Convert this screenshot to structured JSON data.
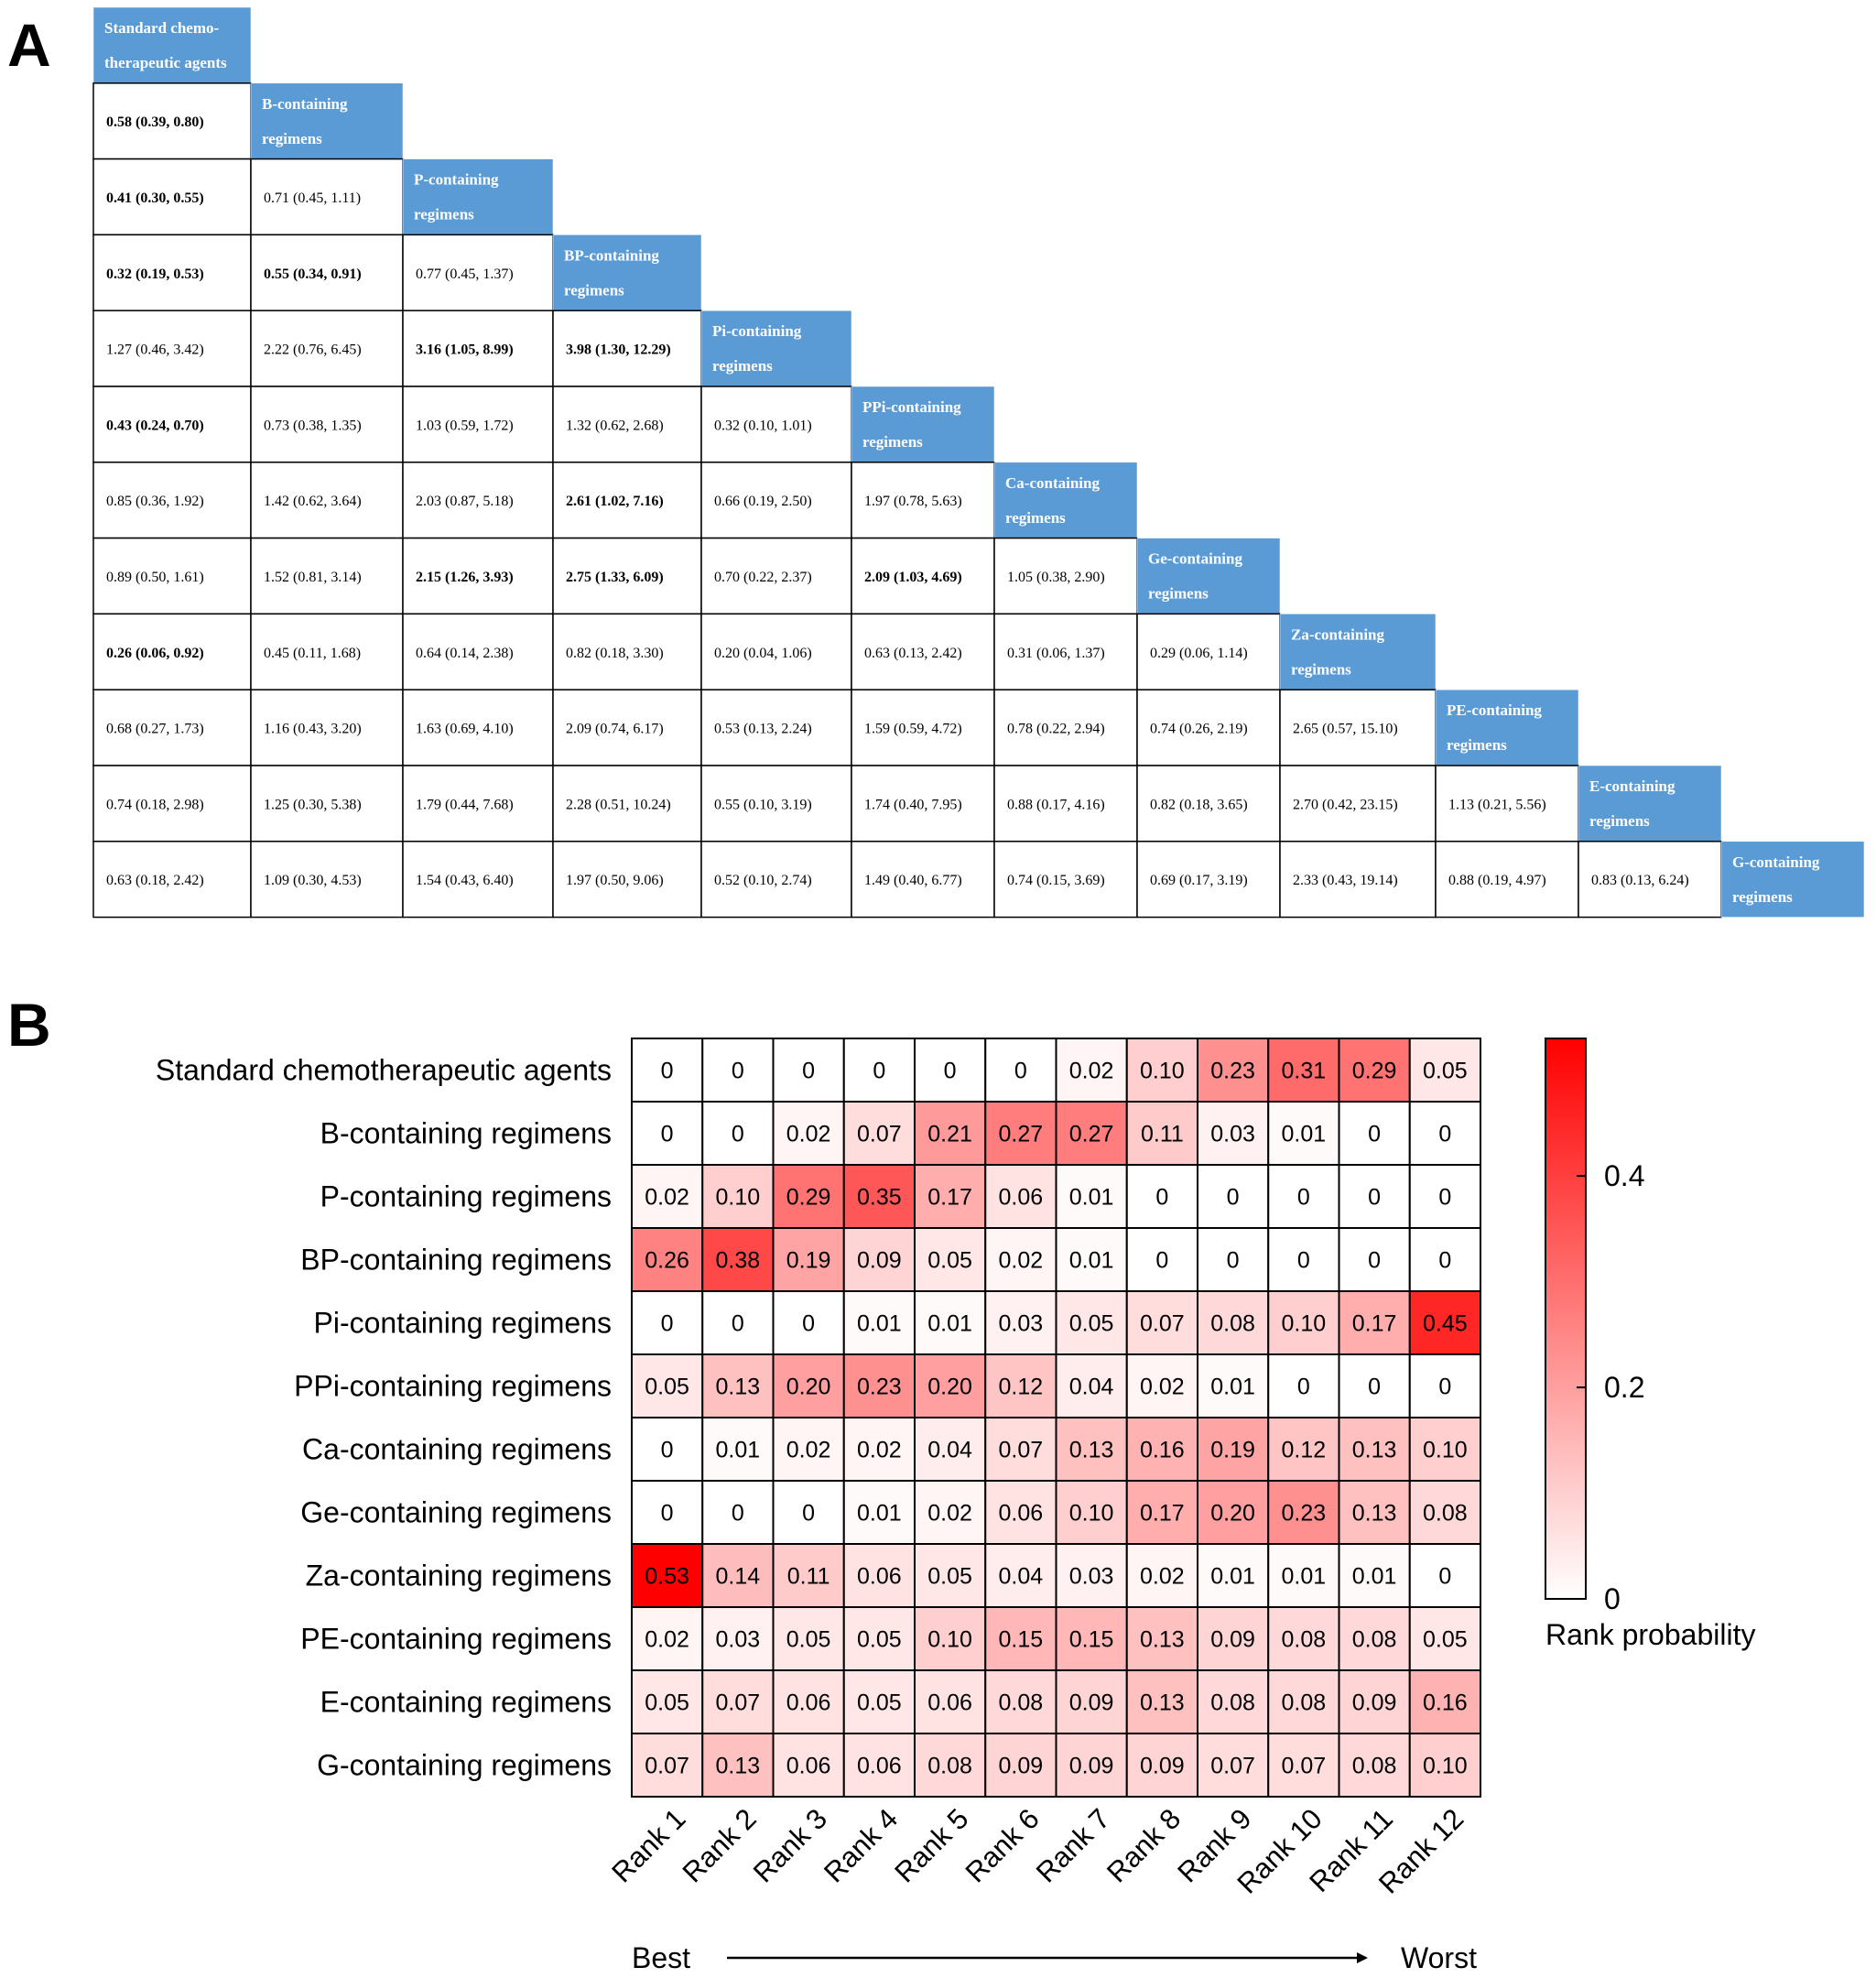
{
  "panel_labels": {
    "a": "A",
    "b": "B"
  },
  "league_table": {
    "header_color": "#5B9BD5",
    "treatments": [
      [
        "Standard chemo-",
        "therapeutic agents"
      ],
      [
        "B-containing",
        "regimens"
      ],
      [
        "P-containing",
        "regimens"
      ],
      [
        "BP-containing",
        "regimens"
      ],
      [
        "Pi-containing",
        "regimens"
      ],
      [
        "PPi-containing",
        "regimens"
      ],
      [
        "Ca-containing",
        "regimens"
      ],
      [
        "Ge-containing",
        "regimens"
      ],
      [
        "Za-containing",
        "regimens"
      ],
      [
        "PE-containing",
        "regimens"
      ],
      [
        "E-containing",
        "regimens"
      ],
      [
        "G-containing",
        "regimens"
      ]
    ],
    "rows": [
      [],
      [
        {
          "text": "0.58 (0.39, 0.80)",
          "bold": true
        }
      ],
      [
        {
          "text": "0.41 (0.30, 0.55)",
          "bold": true
        },
        {
          "text": "0.71 (0.45, 1.11)",
          "bold": false
        }
      ],
      [
        {
          "text": "0.32 (0.19, 0.53)",
          "bold": true
        },
        {
          "text": "0.55 (0.34, 0.91)",
          "bold": true
        },
        {
          "text": "0.77 (0.45, 1.37)",
          "bold": false
        }
      ],
      [
        {
          "text": "1.27 (0.46, 3.42)",
          "bold": false
        },
        {
          "text": "2.22 (0.76, 6.45)",
          "bold": false
        },
        {
          "text": "3.16 (1.05, 8.99)",
          "bold": true
        },
        {
          "text": "3.98 (1.30, 12.29)",
          "bold": true
        }
      ],
      [
        {
          "text": "0.43 (0.24, 0.70)",
          "bold": true
        },
        {
          "text": "0.73 (0.38, 1.35)",
          "bold": false
        },
        {
          "text": "1.03 (0.59, 1.72)",
          "bold": false
        },
        {
          "text": "1.32 (0.62, 2.68)",
          "bold": false
        },
        {
          "text": "0.32 (0.10, 1.01)",
          "bold": false
        }
      ],
      [
        {
          "text": "0.85 (0.36, 1.92)",
          "bold": false
        },
        {
          "text": "1.42 (0.62, 3.64)",
          "bold": false
        },
        {
          "text": "2.03 (0.87, 5.18)",
          "bold": false
        },
        {
          "text": "2.61 (1.02, 7.16)",
          "bold": true
        },
        {
          "text": "0.66 (0.19, 2.50)",
          "bold": false
        },
        {
          "text": "1.97 (0.78, 5.63)",
          "bold": false
        }
      ],
      [
        {
          "text": "0.89 (0.50, 1.61)",
          "bold": false
        },
        {
          "text": "1.52 (0.81, 3.14)",
          "bold": false
        },
        {
          "text": "2.15 (1.26, 3.93)",
          "bold": true
        },
        {
          "text": "2.75 (1.33, 6.09)",
          "bold": true
        },
        {
          "text": "0.70 (0.22, 2.37)",
          "bold": false
        },
        {
          "text": "2.09 (1.03, 4.69)",
          "bold": true
        },
        {
          "text": "1.05 (0.38, 2.90)",
          "bold": false
        }
      ],
      [
        {
          "text": "0.26 (0.06, 0.92)",
          "bold": true
        },
        {
          "text": "0.45 (0.11, 1.68)",
          "bold": false
        },
        {
          "text": "0.64 (0.14, 2.38)",
          "bold": false
        },
        {
          "text": "0.82 (0.18, 3.30)",
          "bold": false
        },
        {
          "text": "0.20 (0.04, 1.06)",
          "bold": false
        },
        {
          "text": "0.63 (0.13, 2.42)",
          "bold": false
        },
        {
          "text": "0.31 (0.06, 1.37)",
          "bold": false
        },
        {
          "text": "0.29 (0.06, 1.14)",
          "bold": false
        }
      ],
      [
        {
          "text": "0.68 (0.27, 1.73)",
          "bold": false
        },
        {
          "text": "1.16 (0.43, 3.20)",
          "bold": false
        },
        {
          "text": "1.63 (0.69, 4.10)",
          "bold": false
        },
        {
          "text": "2.09 (0.74, 6.17)",
          "bold": false
        },
        {
          "text": "0.53 (0.13, 2.24)",
          "bold": false
        },
        {
          "text": "1.59 (0.59, 4.72)",
          "bold": false
        },
        {
          "text": "0.78 (0.22, 2.94)",
          "bold": false
        },
        {
          "text": "0.74 (0.26, 2.19)",
          "bold": false
        },
        {
          "text": "2.65 (0.57, 15.10)",
          "bold": false
        }
      ],
      [
        {
          "text": "0.74 (0.18, 2.98)",
          "bold": false
        },
        {
          "text": "1.25 (0.30, 5.38)",
          "bold": false
        },
        {
          "text": "1.79 (0.44, 7.68)",
          "bold": false
        },
        {
          "text": "2.28 (0.51, 10.24)",
          "bold": false
        },
        {
          "text": "0.55 (0.10, 3.19)",
          "bold": false
        },
        {
          "text": "1.74 (0.40, 7.95)",
          "bold": false
        },
        {
          "text": "0.88 (0.17, 4.16)",
          "bold": false
        },
        {
          "text": "0.82 (0.18, 3.65)",
          "bold": false
        },
        {
          "text": "2.70 (0.42, 23.15)",
          "bold": false
        },
        {
          "text": "1.13 (0.21, 5.56)",
          "bold": false
        }
      ],
      [
        {
          "text": "0.63 (0.18, 2.42)",
          "bold": false
        },
        {
          "text": "1.09 (0.30, 4.53)",
          "bold": false
        },
        {
          "text": "1.54 (0.43, 6.40)",
          "bold": false
        },
        {
          "text": "1.97 (0.50, 9.06)",
          "bold": false
        },
        {
          "text": "0.52 (0.10, 2.74)",
          "bold": false
        },
        {
          "text": "1.49 (0.40, 6.77)",
          "bold": false
        },
        {
          "text": "0.74 (0.15, 3.69)",
          "bold": false
        },
        {
          "text": "0.69 (0.17, 3.19)",
          "bold": false
        },
        {
          "text": "2.33 (0.43, 19.14)",
          "bold": false
        },
        {
          "text": "0.88 (0.19, 4.97)",
          "bold": false
        },
        {
          "text": "0.83 (0.13, 6.24)",
          "bold": false
        }
      ]
    ]
  },
  "chart_data": {
    "type": "heatmap",
    "rows": [
      "Standard chemotherapeutic agents",
      "B-containing regimens",
      "P-containing regimens",
      "BP-containing regimens",
      "Pi-containing regimens",
      "PPi-containing regimens",
      "Ca-containing regimens",
      "Ge-containing regimens",
      "Za-containing regimens",
      "PE-containing regimens",
      "E-containing regimens",
      "G-containing regimens"
    ],
    "columns": [
      "Rank 1",
      "Rank 2",
      "Rank 3",
      "Rank 4",
      "Rank 5",
      "Rank 6",
      "Rank 7",
      "Rank 8",
      "Rank 9",
      "Rank 10",
      "Rank 11",
      "Rank 12"
    ],
    "values": [
      [
        0,
        0,
        0,
        0,
        0,
        0,
        0.02,
        0.1,
        0.23,
        0.31,
        0.29,
        0.05
      ],
      [
        0,
        0,
        0.02,
        0.07,
        0.21,
        0.27,
        0.27,
        0.11,
        0.03,
        0.01,
        0,
        0
      ],
      [
        0.02,
        0.1,
        0.29,
        0.35,
        0.17,
        0.06,
        0.01,
        0,
        0,
        0,
        0,
        0
      ],
      [
        0.26,
        0.38,
        0.19,
        0.09,
        0.05,
        0.02,
        0.01,
        0,
        0,
        0,
        0,
        0
      ],
      [
        0,
        0,
        0,
        0.01,
        0.01,
        0.03,
        0.05,
        0.07,
        0.08,
        0.1,
        0.17,
        0.45
      ],
      [
        0.05,
        0.13,
        0.2,
        0.23,
        0.2,
        0.12,
        0.04,
        0.02,
        0.01,
        0,
        0,
        0
      ],
      [
        0,
        0.01,
        0.02,
        0.02,
        0.04,
        0.07,
        0.13,
        0.16,
        0.19,
        0.12,
        0.13,
        0.1
      ],
      [
        0,
        0,
        0,
        0.01,
        0.02,
        0.06,
        0.1,
        0.17,
        0.2,
        0.23,
        0.13,
        0.08
      ],
      [
        0.53,
        0.14,
        0.11,
        0.06,
        0.05,
        0.04,
        0.03,
        0.02,
        0.01,
        0.01,
        0.01,
        0
      ],
      [
        0.02,
        0.03,
        0.05,
        0.05,
        0.1,
        0.15,
        0.15,
        0.13,
        0.09,
        0.08,
        0.08,
        0.05
      ],
      [
        0.05,
        0.07,
        0.06,
        0.05,
        0.06,
        0.08,
        0.09,
        0.13,
        0.08,
        0.08,
        0.09,
        0.16
      ],
      [
        0.07,
        0.13,
        0.06,
        0.06,
        0.08,
        0.09,
        0.09,
        0.09,
        0.07,
        0.07,
        0.08,
        0.1
      ]
    ],
    "colorbar": {
      "label": "Rank probability",
      "min": 0,
      "max": 0.53,
      "ticks": [
        0,
        0.2,
        0.4
      ],
      "tick_labels": [
        "0",
        "0.2",
        "0.4"
      ],
      "color_low": "#FFFFFF",
      "color_high": "#FF0000"
    },
    "axis_annotation": {
      "left": "Best",
      "right": "Worst"
    }
  }
}
